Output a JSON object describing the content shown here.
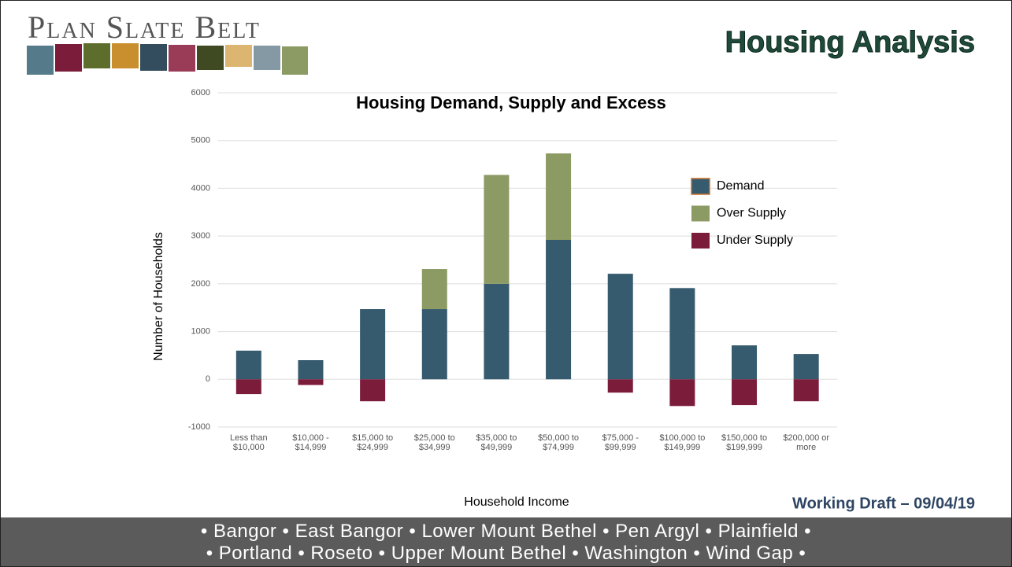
{
  "header": {
    "logo": "Plan Slate Belt",
    "title": "Housing Analysis"
  },
  "chart_data": {
    "type": "bar",
    "stacked": true,
    "title": "Housing Demand, Supply and Excess",
    "x_label": "Household Income",
    "y_label": "Number of Households",
    "categories": [
      "Less than $10,000",
      "$10,000 - $14,999",
      "$15,000 to $24,999",
      "$25,000 to $34,999",
      "$35,000 to $49,999",
      "$50,000 to $74,999",
      "$75,000 - $99,999",
      "$100,000 to $149,999",
      "$150,000 to $199,999",
      "$200,000 or more"
    ],
    "series": [
      {
        "name": "Demand",
        "color": "#365a6e",
        "values": [
          600,
          400,
          1470,
          1470,
          2000,
          2920,
          2210,
          1910,
          710,
          530
        ]
      },
      {
        "name": "Over Supply",
        "color": "#8c9a63",
        "values": [
          null,
          null,
          null,
          840,
          2280,
          1810,
          null,
          null,
          null,
          null
        ]
      },
      {
        "name": "Under Supply",
        "color": "#7b1c3b",
        "values": [
          -310,
          -120,
          -460,
          null,
          null,
          null,
          -280,
          -560,
          -540,
          -460
        ]
      }
    ],
    "ylim": [
      -1000,
      6000
    ],
    "yticks": [
      -1000,
      0,
      1000,
      2000,
      3000,
      4000,
      5000,
      6000
    ],
    "grid": true,
    "legend": "right"
  },
  "draft": "Working Draft – 09/04/19",
  "footer": [
    "• Bangor • East Bangor • Lower Mount Bethel • Pen Argyl • Plainfield •",
    "• Portland • Roseto • Upper Mount Bethel • Washington • Wind Gap •"
  ]
}
